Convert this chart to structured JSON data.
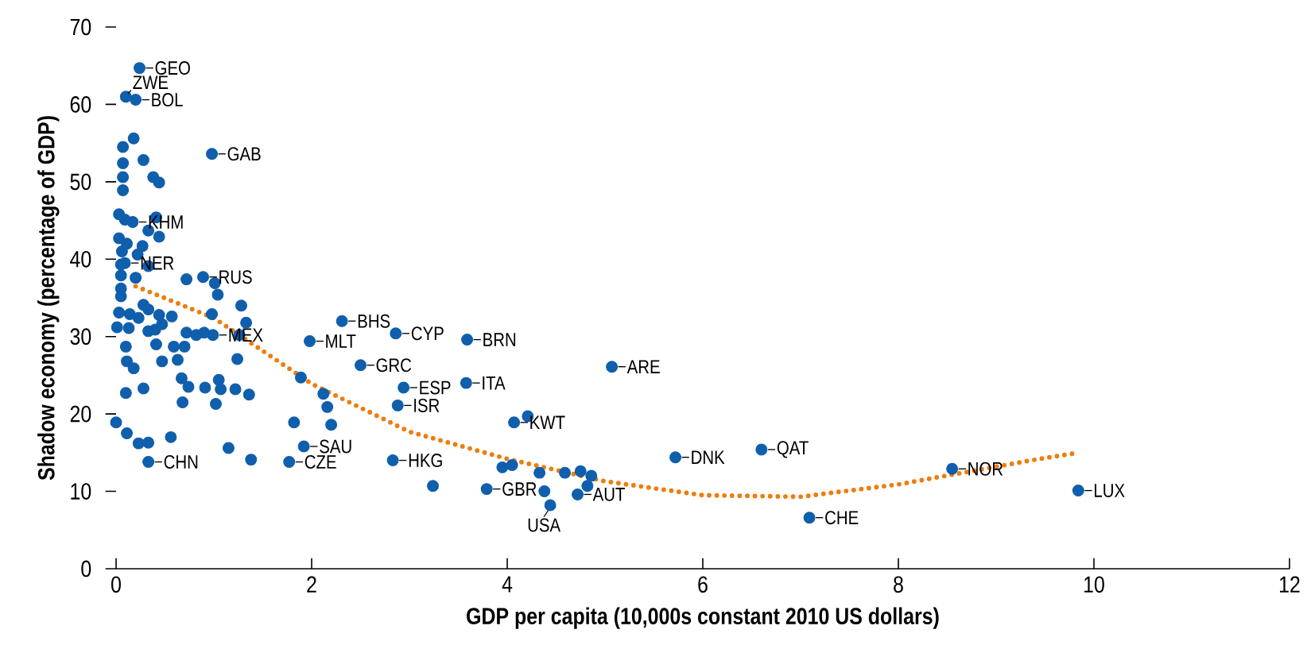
{
  "chart_data": {
    "type": "scatter",
    "xlabel": "GDP per capita (10,000s constant 2010 US dollars)",
    "ylabel": "Shadow economy (percentage of GDP)",
    "xlim": [
      0,
      12
    ],
    "xticks": [
      0,
      2,
      4,
      6,
      8,
      10,
      12
    ],
    "ylim": [
      0,
      70
    ],
    "yticks": [
      0,
      10,
      20,
      30,
      40,
      50,
      60,
      70
    ],
    "marker": "circle",
    "series": [
      {
        "color": "#0f5fad",
        "x": [
          0.24,
          0.1,
          0.2,
          0.98,
          0.17,
          0.09,
          0.89,
          0.99,
          2.31,
          1.98,
          2.86,
          3.59,
          2.5,
          5.07,
          2.94,
          3.58,
          2.88,
          4.07,
          1.92,
          1.77,
          0.33,
          2.83,
          3.79,
          4.44,
          4.72,
          5.72,
          6.6,
          7.09,
          8.55,
          9.84,
          4.21,
          1.89,
          2.12,
          2.16,
          1.82,
          2.2,
          3.24,
          3.95,
          4.05,
          4.33,
          4.38,
          4.59,
          4.75,
          4.86,
          4.82,
          0.18,
          0.07,
          0.28,
          0.07,
          0.38,
          0.44,
          0.07,
          0.07,
          0.03,
          0.09,
          0.41,
          0.33,
          0.44,
          0.03,
          0.11,
          0.27,
          0.06,
          0.22,
          0.05,
          0.33,
          0.05,
          0.2,
          0.72,
          1.01,
          0.05,
          1.04,
          0.05,
          1.28,
          0.03,
          0.14,
          0.28,
          0.33,
          0.44,
          0.57,
          0.98,
          0.23,
          0.01,
          0.13,
          0.33,
          0.4,
          0.47,
          0.72,
          0.82,
          0.9,
          1.26,
          1.33,
          0.1,
          0.41,
          0.59,
          0.7,
          0.11,
          0.18,
          0.47,
          0.63,
          1.24,
          0.67,
          0.74,
          0.91,
          1.05,
          1.07,
          1.22,
          1.36,
          0.1,
          0.28,
          0.68,
          1.02,
          0.0,
          0.11,
          0.56,
          0.23,
          0.33,
          1.15,
          1.38
        ],
        "values": [
          64.7,
          61.0,
          60.6,
          53.6,
          44.8,
          39.5,
          37.7,
          30.2,
          32.0,
          29.4,
          30.4,
          29.6,
          26.3,
          26.1,
          23.4,
          24.0,
          21.1,
          18.9,
          15.8,
          13.8,
          13.8,
          14.0,
          10.3,
          8.2,
          9.6,
          14.4,
          15.4,
          6.6,
          12.9,
          10.1,
          19.7,
          24.7,
          22.6,
          20.9,
          18.9,
          18.6,
          10.7,
          13.1,
          13.4,
          12.4,
          10.0,
          12.4,
          12.6,
          12.0,
          10.7,
          55.6,
          54.5,
          52.8,
          52.4,
          50.6,
          49.9,
          50.6,
          48.9,
          45.8,
          45.1,
          45.4,
          43.7,
          42.9,
          42.7,
          42.0,
          41.7,
          41.0,
          40.6,
          39.3,
          39.1,
          37.9,
          37.6,
          37.4,
          36.9,
          36.2,
          35.4,
          35.2,
          34.0,
          33.1,
          32.9,
          34.1,
          33.5,
          32.8,
          32.6,
          32.9,
          32.4,
          31.2,
          31.1,
          30.7,
          30.9,
          31.6,
          30.5,
          30.2,
          30.5,
          30.2,
          31.8,
          28.7,
          29.0,
          28.7,
          28.7,
          26.8,
          25.9,
          26.8,
          27.0,
          27.1,
          24.6,
          23.5,
          23.4,
          24.4,
          23.2,
          23.2,
          22.5,
          22.7,
          23.3,
          21.5,
          21.3,
          18.9,
          17.5,
          17.0,
          16.2,
          16.3,
          15.6,
          14.1
        ]
      },
      {
        "type": "line",
        "color": "#ed7d0e",
        "line_style": "dotted",
        "marker": "none",
        "x": [
          0.2,
          1,
          2,
          3,
          4,
          5,
          6,
          7,
          8,
          9.4,
          9.8
        ],
        "values": [
          36.5,
          32.4,
          23.9,
          17.7,
          14.2,
          11.3,
          9.5,
          9.3,
          10.9,
          14.1,
          14.9
        ]
      }
    ],
    "annotations": [
      {
        "text": "GEO",
        "x": 0.24,
        "y": 64.7
      },
      {
        "text": "ZWE",
        "x": 0.1,
        "y": 61.0
      },
      {
        "text": "BOL",
        "x": 0.2,
        "y": 60.6
      },
      {
        "text": "GAB",
        "x": 0.98,
        "y": 53.6
      },
      {
        "text": "KHM",
        "x": 0.17,
        "y": 44.8
      },
      {
        "text": "NER",
        "x": 0.09,
        "y": 39.5
      },
      {
        "text": "RUS",
        "x": 0.89,
        "y": 37.7
      },
      {
        "text": "MEX",
        "x": 0.99,
        "y": 30.2
      },
      {
        "text": "BHS",
        "x": 2.31,
        "y": 32.0
      },
      {
        "text": "MLT",
        "x": 1.98,
        "y": 29.4
      },
      {
        "text": "CYP",
        "x": 2.86,
        "y": 30.4
      },
      {
        "text": "BRN",
        "x": 3.59,
        "y": 29.6
      },
      {
        "text": "GRC",
        "x": 2.5,
        "y": 26.3
      },
      {
        "text": "ARE",
        "x": 5.07,
        "y": 26.1
      },
      {
        "text": "ESP",
        "x": 2.94,
        "y": 23.4
      },
      {
        "text": "ITA",
        "x": 3.58,
        "y": 24.0
      },
      {
        "text": "ISR",
        "x": 2.88,
        "y": 21.1
      },
      {
        "text": "KWT",
        "x": 4.07,
        "y": 18.9
      },
      {
        "text": "SAU",
        "x": 1.92,
        "y": 15.8
      },
      {
        "text": "CZE",
        "x": 1.77,
        "y": 13.8
      },
      {
        "text": "CHN",
        "x": 0.33,
        "y": 13.8
      },
      {
        "text": "HKG",
        "x": 2.83,
        "y": 14.0
      },
      {
        "text": "GBR",
        "x": 3.79,
        "y": 10.3
      },
      {
        "text": "USA",
        "x": 4.44,
        "y": 8.2
      },
      {
        "text": "AUT",
        "x": 4.72,
        "y": 9.6
      },
      {
        "text": "DNK",
        "x": 5.72,
        "y": 14.4
      },
      {
        "text": "QAT",
        "x": 6.6,
        "y": 15.4
      },
      {
        "text": "CHE",
        "x": 7.09,
        "y": 6.6
      },
      {
        "text": "NOR",
        "x": 8.55,
        "y": 12.9
      },
      {
        "text": "LUX",
        "x": 9.84,
        "y": 10.1
      }
    ]
  }
}
